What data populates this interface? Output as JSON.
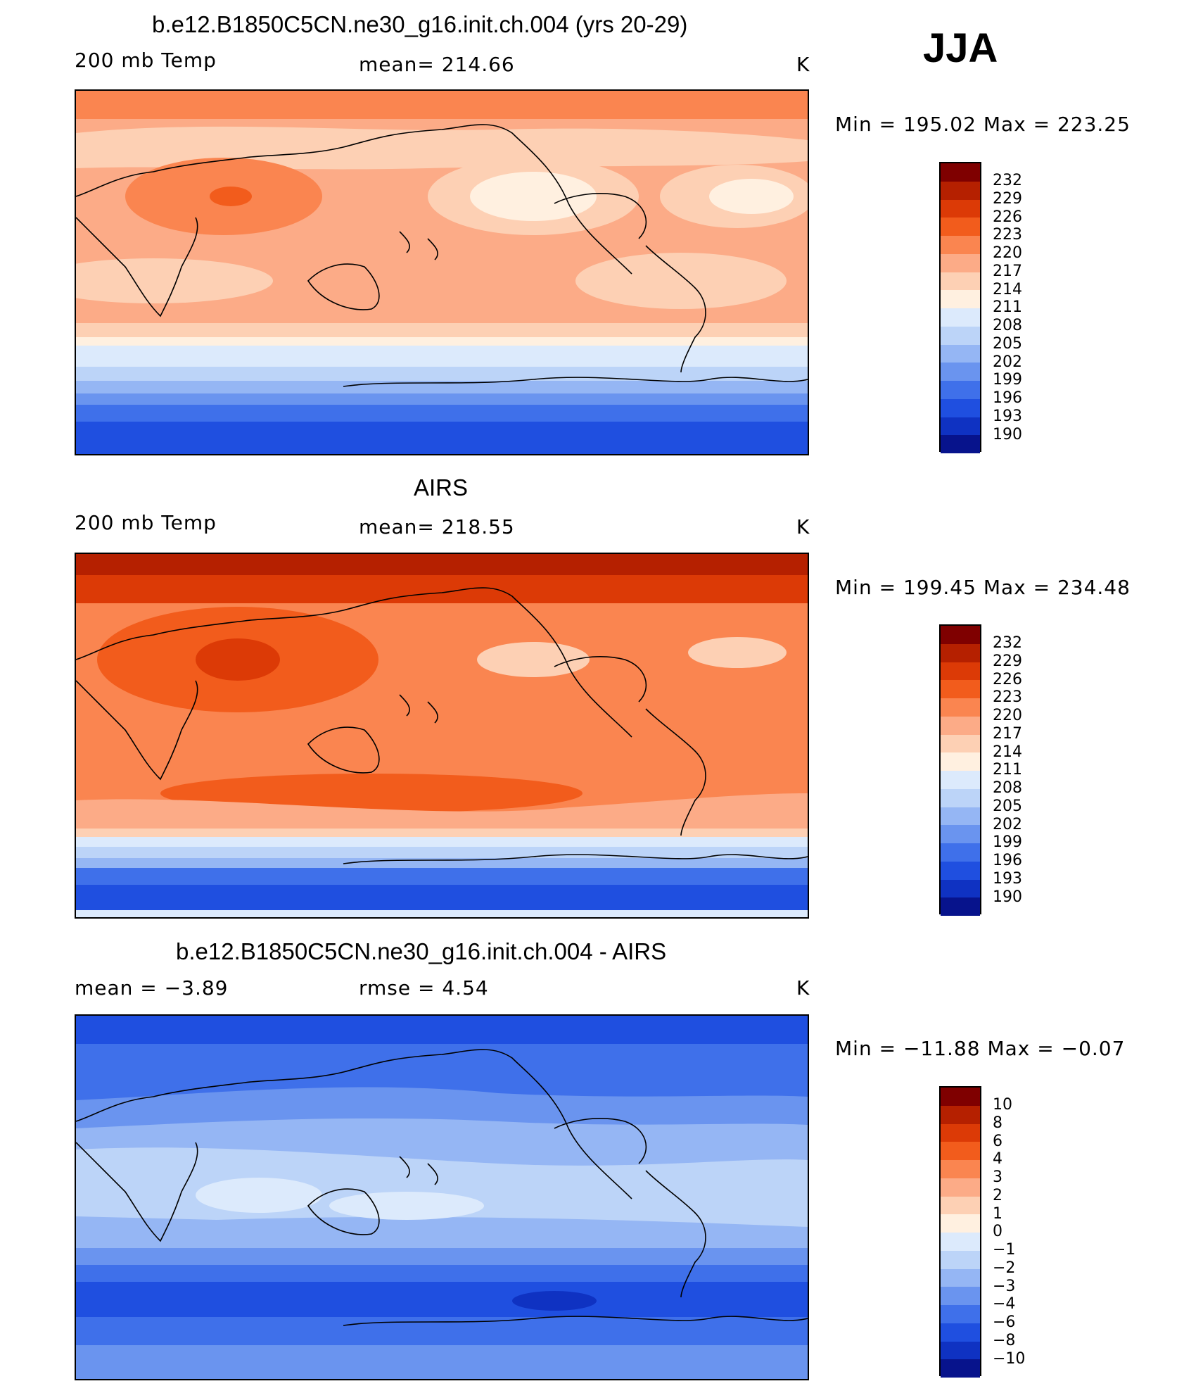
{
  "season": "JJA",
  "panels": [
    {
      "id": "model",
      "title": "b.e12.B1850C5CN.ne30_g16.init.ch.004 (yrs 20-29)",
      "left_label": "200 mb Temp",
      "center_label": "mean=  214.66",
      "units": "K",
      "minmax": "Min  =  195.02  Max  =  223.25",
      "colorbar": [
        "232",
        "229",
        "226",
        "223",
        "220",
        "217",
        "214",
        "211",
        "208",
        "205",
        "202",
        "199",
        "196",
        "193",
        "190"
      ]
    },
    {
      "id": "obs",
      "title": "AIRS",
      "left_label": "200 mb Temp",
      "center_label": "mean=  218.55",
      "units": "K",
      "minmax": "Min  =  199.45  Max  =  234.48",
      "colorbar": [
        "232",
        "229",
        "226",
        "223",
        "220",
        "217",
        "214",
        "211",
        "208",
        "205",
        "202",
        "199",
        "196",
        "193",
        "190"
      ]
    },
    {
      "id": "diff",
      "title": "b.e12.B1850C5CN.ne30_g16.init.ch.004 - AIRS",
      "left_label": "mean  =   −3.89",
      "center_label": "rmse  =    4.54",
      "units": "K",
      "minmax": "Min  =  −11.88  Max  =   −0.07",
      "colorbar": [
        "10",
        "8",
        "6",
        "4",
        "3",
        "2",
        "1",
        "0",
        "−1",
        "−2",
        "−3",
        "−4",
        "−6",
        "−8",
        "−10"
      ]
    }
  ],
  "palette": [
    "#7f0000",
    "#b52000",
    "#dc3a06",
    "#f25c1c",
    "#fa8550",
    "#fcab87",
    "#fdd0b4",
    "#fff0e0",
    "#dceafc",
    "#bcd4f8",
    "#95b6f4",
    "#6a94ef",
    "#3f70ea",
    "#1f4fe0",
    "#0f32c2",
    "#07138c"
  ]
}
